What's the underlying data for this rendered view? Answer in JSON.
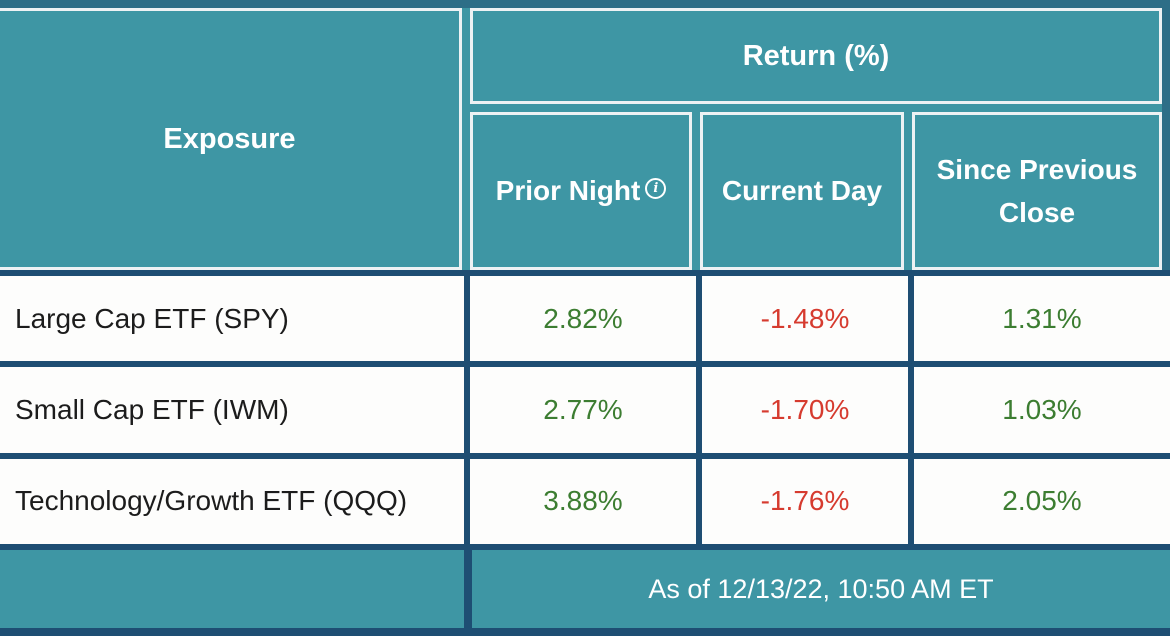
{
  "colors": {
    "teal_header": "#3E96A4",
    "teal_dark_outer_border": "#2D6E87",
    "navy_grid_border": "#1E4E73",
    "header_cell_border": "#EDF2F4",
    "cell_background": "#FDFDFC",
    "positive_green": "#3C7D31",
    "negative_red": "#D63B2F",
    "header_text": "#FFFFFF",
    "body_text": "#1C1C1C"
  },
  "table": {
    "header": {
      "exposure": "Exposure",
      "return_group": "Return (%)",
      "prior_night": "Prior Night",
      "prior_night_info_icon": "i",
      "current_day": "Current Day",
      "since_previous_close": "Since Previous Close"
    },
    "rows": [
      {
        "exposure": "Large Cap ETF (SPY)",
        "prior_night": "2.82%",
        "current_day": "-1.48%",
        "since_previous_close": "1.31%"
      },
      {
        "exposure": "Small Cap ETF (IWM)",
        "prior_night": "2.77%",
        "current_day": "-1.70%",
        "since_previous_close": "1.03%"
      },
      {
        "exposure": "Technology/Growth ETF (QQQ)",
        "prior_night": "3.88%",
        "current_day": "-1.76%",
        "since_previous_close": "2.05%"
      }
    ],
    "footer": {
      "as_of": "As of 12/13/22, 10:50 AM ET"
    }
  },
  "chart_data": {
    "type": "table",
    "title": "Return (%)",
    "columns": [
      "Exposure",
      "Prior Night",
      "Current Day",
      "Since Previous Close"
    ],
    "rows": [
      [
        "Large Cap ETF (SPY)",
        2.82,
        -1.48,
        1.31
      ],
      [
        "Small Cap ETF (IWM)",
        2.77,
        -1.7,
        1.03
      ],
      [
        "Technology/Growth ETF (QQQ)",
        3.88,
        -1.76,
        2.05
      ]
    ],
    "units": "percent",
    "value_color_rule": "positive values green, negative values red",
    "as_of": "As of 12/13/22, 10:50 AM ET"
  }
}
